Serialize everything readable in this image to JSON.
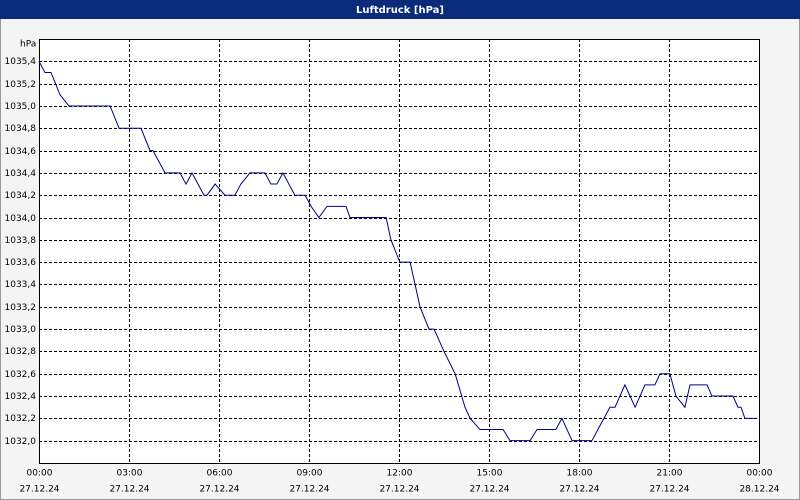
{
  "chart_data": {
    "type": "line",
    "title": "Luftdruck [hPa]",
    "y_label": "hPa",
    "color": "#00008b",
    "grid": true,
    "x": [
      0,
      0.2,
      0.4,
      0.7,
      1.0,
      2.37,
      2.67,
      3.4,
      3.7,
      3.8,
      4.2,
      4.7,
      4.9,
      5.1,
      5.5,
      5.6,
      5.87,
      6.2,
      6.53,
      6.73,
      7.03,
      7.53,
      7.73,
      7.93,
      8.13,
      8.53,
      8.87,
      9.07,
      9.33,
      9.6,
      10.23,
      10.37,
      11.57,
      11.73,
      12.03,
      12.37,
      12.7,
      13.0,
      13.17,
      13.5,
      13.87,
      14.2,
      14.37,
      14.7,
      15.47,
      15.7,
      16.37,
      16.6,
      17.23,
      17.43,
      17.77,
      18.43,
      18.63,
      19.03,
      19.2,
      19.53,
      19.87,
      20.2,
      20.53,
      20.7,
      21.03,
      21.23,
      21.53,
      21.7,
      22.27,
      22.43,
      23.13,
      23.3,
      23.4,
      23.53,
      23.93
    ],
    "values": [
      1035.4,
      1035.3,
      1035.3,
      1035.1,
      1035.0,
      1035.0,
      1034.8,
      1034.8,
      1034.6,
      1034.6,
      1034.4,
      1034.4,
      1034.3,
      1034.4,
      1034.2,
      1034.2,
      1034.3,
      1034.2,
      1034.2,
      1034.3,
      1034.4,
      1034.4,
      1034.3,
      1034.3,
      1034.4,
      1034.2,
      1034.2,
      1034.1,
      1034.0,
      1034.1,
      1034.1,
      1034.0,
      1034.0,
      1033.8,
      1033.6,
      1033.6,
      1033.2,
      1033.0,
      1033.0,
      1032.8,
      1032.6,
      1032.3,
      1032.2,
      1032.1,
      1032.1,
      1032.0,
      1032.0,
      1032.1,
      1032.1,
      1032.2,
      1032.0,
      1032.0,
      1032.1,
      1032.3,
      1032.3,
      1032.5,
      1032.3,
      1032.5,
      1032.5,
      1032.6,
      1032.6,
      1032.4,
      1032.3,
      1032.5,
      1032.5,
      1032.4,
      1032.4,
      1032.3,
      1032.3,
      1032.2,
      1032.2
    ],
    "xlim": [
      0,
      24
    ],
    "xticks": [
      {
        "value": 0,
        "label": "00:00"
      },
      {
        "value": 3,
        "label": "03:00"
      },
      {
        "value": 6,
        "label": "06:00"
      },
      {
        "value": 9,
        "label": "09:00"
      },
      {
        "value": 12,
        "label": "12:00"
      },
      {
        "value": 15,
        "label": "15:00"
      },
      {
        "value": 18,
        "label": "18:00"
      },
      {
        "value": 21,
        "label": "21:00"
      },
      {
        "value": 24,
        "label": "00:00"
      }
    ],
    "xtick_dates": [
      "27.12.24",
      "27.12.24",
      "27.12.24",
      "27.12.24",
      "27.12.24",
      "27.12.24",
      "27.12.24",
      "27.12.24",
      "28.12.24"
    ],
    "ylim": [
      1031.8,
      1035.6
    ],
    "yticks": [
      {
        "value": 1032.0,
        "label": "1032,0"
      },
      {
        "value": 1032.2,
        "label": "1032,2"
      },
      {
        "value": 1032.4,
        "label": "1032,4"
      },
      {
        "value": 1032.6,
        "label": "1032,6"
      },
      {
        "value": 1032.8,
        "label": "1032,8"
      },
      {
        "value": 1033.0,
        "label": "1033,0"
      },
      {
        "value": 1033.2,
        "label": "1033,2"
      },
      {
        "value": 1033.4,
        "label": "1033,4"
      },
      {
        "value": 1033.6,
        "label": "1033,6"
      },
      {
        "value": 1033.8,
        "label": "1033,8"
      },
      {
        "value": 1034.0,
        "label": "1034,0"
      },
      {
        "value": 1034.2,
        "label": "1034,2"
      },
      {
        "value": 1034.4,
        "label": "1034,4"
      },
      {
        "value": 1034.6,
        "label": "1034,6"
      },
      {
        "value": 1034.8,
        "label": "1034,8"
      },
      {
        "value": 1035.0,
        "label": "1035,0"
      },
      {
        "value": 1035.2,
        "label": "1035,2"
      },
      {
        "value": 1035.4,
        "label": "1035,4"
      }
    ]
  }
}
